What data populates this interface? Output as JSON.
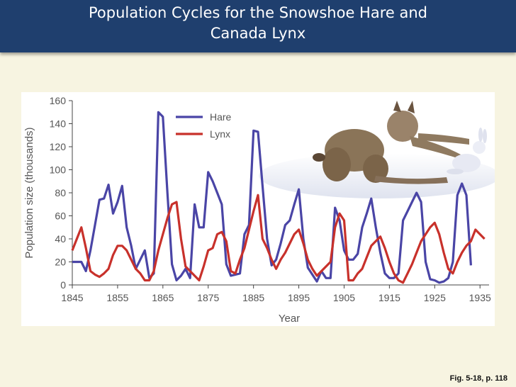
{
  "slide": {
    "title_line1": "Population Cycles for the Snowshoe Hare and",
    "title_line2": "Canada Lynx",
    "caption": "Fig. 5-18, p. 118"
  },
  "colors": {
    "title_bar": "#1f3f6e",
    "background": "#f7f4e1",
    "hare": "#4a45a6",
    "lynx": "#c8312b"
  },
  "chart_data": {
    "type": "line",
    "title": "",
    "xlabel": "Year",
    "ylabel": "Population size (thousands)",
    "xlim": [
      1845,
      1937
    ],
    "ylim": [
      0,
      160
    ],
    "xticks": [
      1845,
      1855,
      1865,
      1875,
      1885,
      1895,
      1905,
      1915,
      1925,
      1935
    ],
    "yticks": [
      0,
      20,
      40,
      60,
      80,
      100,
      120,
      140,
      160
    ],
    "legend_position": "top-left",
    "grid": false,
    "illustration": "lynx-chasing-hare",
    "series": [
      {
        "name": "Hare",
        "color": "#4a45a6",
        "points": [
          [
            1845,
            20
          ],
          [
            1846,
            20
          ],
          [
            1847,
            20
          ],
          [
            1848,
            12
          ],
          [
            1849,
            30
          ],
          [
            1850,
            52
          ],
          [
            1851,
            74
          ],
          [
            1852,
            75
          ],
          [
            1853,
            87
          ],
          [
            1854,
            62
          ],
          [
            1855,
            72
          ],
          [
            1856,
            86
          ],
          [
            1857,
            50
          ],
          [
            1858,
            34
          ],
          [
            1859,
            14
          ],
          [
            1860,
            22
          ],
          [
            1861,
            30
          ],
          [
            1862,
            6
          ],
          [
            1863,
            10
          ],
          [
            1864,
            150
          ],
          [
            1865,
            146
          ],
          [
            1866,
            80
          ],
          [
            1867,
            18
          ],
          [
            1868,
            4
          ],
          [
            1869,
            8
          ],
          [
            1870,
            14
          ],
          [
            1871,
            6
          ],
          [
            1872,
            70
          ],
          [
            1873,
            50
          ],
          [
            1874,
            50
          ],
          [
            1875,
            98
          ],
          [
            1876,
            90
          ],
          [
            1877,
            80
          ],
          [
            1878,
            70
          ],
          [
            1879,
            18
          ],
          [
            1880,
            8
          ],
          [
            1881,
            9
          ],
          [
            1882,
            10
          ],
          [
            1883,
            44
          ],
          [
            1884,
            52
          ],
          [
            1885,
            134
          ],
          [
            1886,
            133
          ],
          [
            1887,
            86
          ],
          [
            1888,
            40
          ],
          [
            1889,
            17
          ],
          [
            1890,
            22
          ],
          [
            1891,
            36
          ],
          [
            1892,
            52
          ],
          [
            1893,
            56
          ],
          [
            1894,
            70
          ],
          [
            1895,
            83
          ],
          [
            1896,
            40
          ],
          [
            1897,
            15
          ],
          [
            1898,
            9
          ],
          [
            1899,
            3
          ],
          [
            1900,
            12
          ],
          [
            1901,
            6
          ],
          [
            1902,
            6
          ],
          [
            1903,
            67
          ],
          [
            1904,
            56
          ],
          [
            1905,
            30
          ],
          [
            1906,
            22
          ],
          [
            1907,
            22
          ],
          [
            1908,
            27
          ],
          [
            1909,
            50
          ],
          [
            1910,
            62
          ],
          [
            1911,
            75
          ],
          [
            1912,
            50
          ],
          [
            1913,
            28
          ],
          [
            1914,
            10
          ],
          [
            1915,
            6
          ],
          [
            1916,
            6
          ],
          [
            1917,
            10
          ],
          [
            1918,
            56
          ],
          [
            1919,
            64
          ],
          [
            1920,
            72
          ],
          [
            1921,
            80
          ],
          [
            1922,
            72
          ],
          [
            1923,
            20
          ],
          [
            1924,
            5
          ],
          [
            1925,
            4
          ],
          [
            1926,
            2
          ],
          [
            1927,
            3
          ],
          [
            1928,
            6
          ],
          [
            1929,
            20
          ],
          [
            1930,
            78
          ],
          [
            1931,
            88
          ],
          [
            1932,
            78
          ],
          [
            1933,
            17
          ]
        ]
      },
      {
        "name": "Lynx",
        "color": "#c8312b",
        "points": [
          [
            1845,
            30
          ],
          [
            1846,
            40
          ],
          [
            1847,
            50
          ],
          [
            1848,
            32
          ],
          [
            1849,
            12
          ],
          [
            1850,
            9
          ],
          [
            1851,
            7
          ],
          [
            1852,
            10
          ],
          [
            1853,
            14
          ],
          [
            1854,
            26
          ],
          [
            1855,
            34
          ],
          [
            1856,
            34
          ],
          [
            1857,
            30
          ],
          [
            1858,
            22
          ],
          [
            1859,
            14
          ],
          [
            1860,
            10
          ],
          [
            1861,
            4
          ],
          [
            1862,
            4
          ],
          [
            1863,
            12
          ],
          [
            1864,
            30
          ],
          [
            1865,
            44
          ],
          [
            1866,
            58
          ],
          [
            1867,
            70
          ],
          [
            1868,
            72
          ],
          [
            1869,
            40
          ],
          [
            1870,
            16
          ],
          [
            1871,
            12
          ],
          [
            1872,
            8
          ],
          [
            1873,
            4
          ],
          [
            1874,
            16
          ],
          [
            1875,
            30
          ],
          [
            1876,
            32
          ],
          [
            1877,
            44
          ],
          [
            1878,
            46
          ],
          [
            1879,
            38
          ],
          [
            1880,
            12
          ],
          [
            1881,
            10
          ],
          [
            1882,
            22
          ],
          [
            1883,
            32
          ],
          [
            1884,
            48
          ],
          [
            1885,
            64
          ],
          [
            1886,
            78
          ],
          [
            1887,
            40
          ],
          [
            1888,
            32
          ],
          [
            1889,
            22
          ],
          [
            1890,
            14
          ],
          [
            1891,
            22
          ],
          [
            1892,
            28
          ],
          [
            1893,
            36
          ],
          [
            1894,
            44
          ],
          [
            1895,
            48
          ],
          [
            1896,
            36
          ],
          [
            1897,
            22
          ],
          [
            1898,
            14
          ],
          [
            1899,
            8
          ],
          [
            1900,
            12
          ],
          [
            1901,
            16
          ],
          [
            1902,
            20
          ],
          [
            1903,
            50
          ],
          [
            1904,
            62
          ],
          [
            1905,
            56
          ],
          [
            1906,
            4
          ],
          [
            1907,
            4
          ],
          [
            1908,
            10
          ],
          [
            1909,
            14
          ],
          [
            1910,
            24
          ],
          [
            1911,
            34
          ],
          [
            1912,
            38
          ],
          [
            1913,
            42
          ],
          [
            1914,
            32
          ],
          [
            1915,
            20
          ],
          [
            1916,
            10
          ],
          [
            1917,
            4
          ],
          [
            1918,
            2
          ],
          [
            1919,
            10
          ],
          [
            1920,
            18
          ],
          [
            1921,
            28
          ],
          [
            1922,
            38
          ],
          [
            1923,
            44
          ],
          [
            1924,
            50
          ],
          [
            1925,
            54
          ],
          [
            1926,
            44
          ],
          [
            1927,
            28
          ],
          [
            1928,
            14
          ],
          [
            1929,
            10
          ],
          [
            1930,
            20
          ],
          [
            1931,
            28
          ],
          [
            1932,
            34
          ],
          [
            1933,
            38
          ],
          [
            1934,
            48
          ],
          [
            1935,
            44
          ],
          [
            1936,
            40
          ]
        ]
      }
    ]
  }
}
